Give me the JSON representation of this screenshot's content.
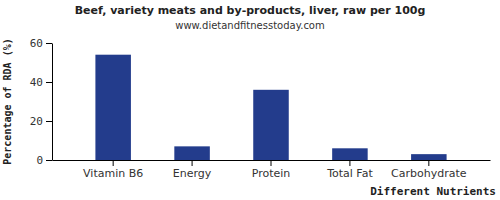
{
  "chart_data": {
    "type": "bar",
    "title": "Beef, variety meats and by-products, liver, raw per 100g",
    "subtitle": "www.dietandfitnesstoday.com",
    "x_label": "Different Nutrients",
    "y_label": "Percentage of RDA (%)",
    "categories": [
      "Vitamin B6",
      "Energy",
      "Protein",
      "Total Fat",
      "Carbohydrate"
    ],
    "values": [
      54,
      7,
      36,
      6,
      3
    ],
    "color": "#233c8c",
    "ylim": [
      0,
      60
    ],
    "yticks": [
      0,
      20,
      40,
      60
    ],
    "grid": false
  }
}
